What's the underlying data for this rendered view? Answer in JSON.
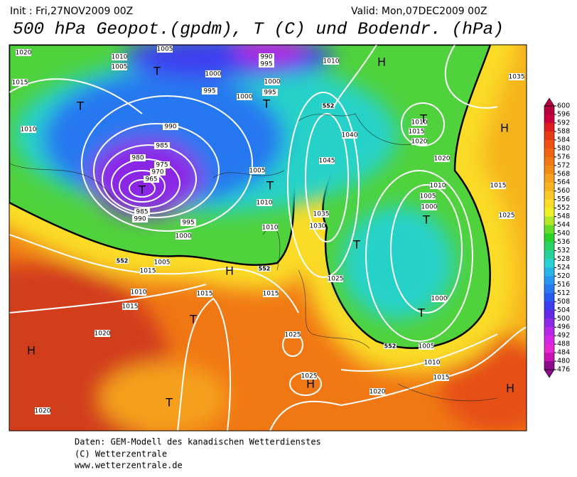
{
  "header": {
    "init": "Init : Fri,27NOV2009 00Z",
    "valid": "Valid: Mon,07DEC2009 00Z",
    "title": "500 hPa Geopot.(gpdm), T (C) und Bodendr. (hPa)"
  },
  "colorbar": {
    "ticks": [
      600,
      596,
      592,
      588,
      584,
      580,
      576,
      572,
      568,
      564,
      560,
      556,
      552,
      548,
      544,
      540,
      536,
      532,
      528,
      524,
      520,
      516,
      512,
      508,
      504,
      500,
      496,
      492,
      488,
      484,
      480,
      476
    ],
    "colors": [
      "#b4003c",
      "#c8003c",
      "#dc1e1e",
      "#e63c14",
      "#f05014",
      "#f06414",
      "#f07814",
      "#f08c14",
      "#f5a01e",
      "#f5b41e",
      "#fac828",
      "#fadc28",
      "#f0f028",
      "#b4e628",
      "#64dc28",
      "#28d228",
      "#28d264",
      "#28d2a0",
      "#28d2d2",
      "#28b4e6",
      "#2896f0",
      "#2878f0",
      "#285af0",
      "#3c3cf0",
      "#6428e6",
      "#8c28e6",
      "#b428e6",
      "#d228e6",
      "#e628d2",
      "#c814b4",
      "#8c0a8c"
    ]
  },
  "map": {
    "systems": [
      "H",
      "H",
      "H",
      "H",
      "H",
      "H",
      "T",
      "T",
      "T",
      "T",
      "T",
      "T",
      "T",
      "T",
      "T",
      "T",
      "T"
    ],
    "isobars": [
      "1020",
      "1015",
      "1010",
      "1005",
      "1010",
      "1005",
      "1000",
      "995",
      "990",
      "985",
      "980",
      "975",
      "970",
      "965",
      "985",
      "990",
      "995",
      "1000",
      "1005",
      "1015",
      "1010",
      "1015",
      "1020",
      "1015",
      "1015",
      "1025",
      "1030",
      "1035",
      "1040",
      "1045",
      "1020",
      "1010",
      "1005",
      "1000",
      "1000",
      "1025",
      "1025",
      "1020",
      "1015",
      "1010",
      "1005",
      "1020",
      "1015",
      "1025",
      "1035",
      "1015",
      "1020",
      "1010",
      "1010",
      "1005",
      "1010",
      "1010",
      "1000",
      "995",
      "1000",
      "995",
      "990"
    ],
    "contours": [
      "552",
      "552",
      "552",
      "552"
    ]
  },
  "footer": [
    "Daten: GEM-Modell des kanadischen Wetterdienstes",
    "(C) Wetterzentrale",
    "www.wetterzentrale.de"
  ]
}
